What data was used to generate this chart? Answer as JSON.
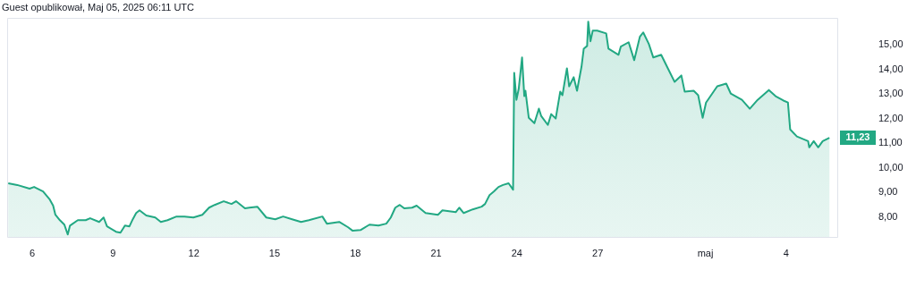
{
  "chart_data": {
    "type": "area",
    "title": "Guest opublikował, Maj 05, 2025 06:11 UTC",
    "x": [
      "2025-04-05T03:00",
      "2025-04-05T11:00",
      "2025-04-05T22:00",
      "2025-04-06T02:00",
      "2025-04-06T10:00",
      "2025-04-06T16:00",
      "2025-04-06T19:00",
      "2025-04-06T21:00",
      "2025-04-07T01:00",
      "2025-04-07T05:00",
      "2025-04-07T08:00",
      "2025-04-07T10:00",
      "2025-04-07T17:00",
      "2025-04-08T00:00",
      "2025-04-08T04:00",
      "2025-04-08T12:00",
      "2025-04-08T16:00",
      "2025-04-08T19:00",
      "2025-04-09T03:00",
      "2025-04-09T07:00",
      "2025-04-09T11:00",
      "2025-04-09T15:00",
      "2025-04-09T18:00",
      "2025-04-09T21:00",
      "2025-04-10T00:00",
      "2025-04-10T06:00",
      "2025-04-10T14:00",
      "2025-04-10T19:00",
      "2025-04-11T01:00",
      "2025-04-11T09:00",
      "2025-04-11T16:00",
      "2025-04-12T00:00",
      "2025-04-12T08:00",
      "2025-04-12T14:00",
      "2025-04-12T19:00",
      "2025-04-13T03:00",
      "2025-04-13T10:00",
      "2025-04-13T14:00",
      "2025-04-13T22:00",
      "2025-04-14T02:00",
      "2025-04-14T09:00",
      "2025-04-14T17:00",
      "2025-04-15T01:00",
      "2025-04-15T08:00",
      "2025-04-15T16:00",
      "2025-04-16T00:00",
      "2025-04-16T07:00",
      "2025-04-16T19:00",
      "2025-04-16T23:00",
      "2025-04-17T10:00",
      "2025-04-17T18:00",
      "2025-04-17T22:00",
      "2025-04-18T05:00",
      "2025-04-18T13:00",
      "2025-04-18T21:00",
      "2025-04-19T04:00",
      "2025-04-19T08:00",
      "2025-04-19T12:00",
      "2025-04-19T16:00",
      "2025-04-19T20:00",
      "2025-04-20T03:00",
      "2025-04-20T07:00",
      "2025-04-20T15:00",
      "2025-04-21T02:00",
      "2025-04-21T06:00",
      "2025-04-21T18:00",
      "2025-04-21T21:00",
      "2025-04-22T01:00",
      "2025-04-22T09:00",
      "2025-04-22T17:00",
      "2025-04-22T20:00",
      "2025-04-23T00:00",
      "2025-04-23T04:00",
      "2025-04-23T08:00",
      "2025-04-23T12:00",
      "2025-04-23T17:00",
      "2025-04-23T21:00",
      "2025-04-23T22:00",
      "2025-04-24T00:00",
      "2025-04-24T02:00",
      "2025-04-24T05:00",
      "2025-04-24T07:00",
      "2025-04-24T08:00",
      "2025-04-24T11:00",
      "2025-04-24T16:00",
      "2025-04-24T20:00",
      "2025-04-24T22:00",
      "2025-04-25T04:00",
      "2025-04-25T07:00",
      "2025-04-25T11:00",
      "2025-04-25T15:00",
      "2025-04-25T17:00",
      "2025-04-25T21:00",
      "2025-04-25T23:00",
      "2025-04-26T03:00",
      "2025-04-26T06:00",
      "2025-04-26T10:00",
      "2025-04-26T12:00",
      "2025-04-26T15:00",
      "2025-04-26T16:00",
      "2025-04-26T18:00",
      "2025-04-26T20:00",
      "2025-04-27T00:00",
      "2025-04-27T08:00",
      "2025-04-27T10:00",
      "2025-04-27T19:00",
      "2025-04-27T21:00",
      "2025-04-28T04:00",
      "2025-04-28T09:00",
      "2025-04-28T14:00",
      "2025-04-28T17:00",
      "2025-04-28T22:00",
      "2025-04-29T02:00",
      "2025-04-29T09:00",
      "2025-04-29T15:00",
      "2025-04-29T21:00",
      "2025-04-30T03:00",
      "2025-04-30T06:00",
      "2025-04-30T14:00",
      "2025-04-30T18:00",
      "2025-04-30T22:00",
      "2025-05-01T01:00",
      "2025-05-01T11:00",
      "2025-05-01T19:00",
      "2025-05-01T23:00",
      "2025-05-02T09:00",
      "2025-05-02T16:00",
      "2025-05-02T23:00",
      "2025-05-03T09:00",
      "2025-05-03T15:00",
      "2025-05-03T22:00",
      "2025-05-04T02:00",
      "2025-05-04T04:00",
      "2025-05-04T10:00",
      "2025-05-04T20:00",
      "2025-05-04T21:00",
      "2025-05-05T01:00",
      "2025-05-05T05:00",
      "2025-05-05T09:00",
      "2025-05-05T15:00"
    ],
    "series": [
      {
        "color": "#22a883",
        "values": [
          9.38,
          9.31,
          9.16,
          9.23,
          9.05,
          8.72,
          8.47,
          8.1,
          7.88,
          7.7,
          7.3,
          7.66,
          7.88,
          7.88,
          7.96,
          7.81,
          7.99,
          7.63,
          7.41,
          7.37,
          7.66,
          7.63,
          7.92,
          8.17,
          8.28,
          8.07,
          7.99,
          7.81,
          7.88,
          8.03,
          8.03,
          7.99,
          8.1,
          8.39,
          8.5,
          8.65,
          8.54,
          8.65,
          8.36,
          8.39,
          8.43,
          7.99,
          7.92,
          8.03,
          7.92,
          7.81,
          7.88,
          8.03,
          7.74,
          7.81,
          7.59,
          7.45,
          7.48,
          7.7,
          7.66,
          7.74,
          7.99,
          8.39,
          8.5,
          8.36,
          8.39,
          8.47,
          8.17,
          8.1,
          8.28,
          8.21,
          8.39,
          8.17,
          8.32,
          8.43,
          8.54,
          8.9,
          9.05,
          9.23,
          9.31,
          9.38,
          9.12,
          13.87,
          12.77,
          13.21,
          14.49,
          12.92,
          13.14,
          12.04,
          11.82,
          12.41,
          12.12,
          11.75,
          12.19,
          12.01,
          13.1,
          12.96,
          14.05,
          13.32,
          13.69,
          13.14,
          14.12,
          14.85,
          14.96,
          15.95,
          15.15,
          15.58,
          15.58,
          15.47,
          14.85,
          14.6,
          14.93,
          15.11,
          14.38,
          15.33,
          15.51,
          15.04,
          14.49,
          14.6,
          14.05,
          13.5,
          13.76,
          13.1,
          13.14,
          12.96,
          12.04,
          12.66,
          13.32,
          13.43,
          13.03,
          12.77,
          12.41,
          12.77,
          13.17,
          12.92,
          12.74,
          12.66,
          11.57,
          11.28,
          11.09,
          10.84,
          11.09,
          10.84,
          11.09,
          11.23
        ]
      }
    ],
    "xlim": [
      "2025-04-05T02:00",
      "2025-05-05T22:00"
    ],
    "xticks": [
      {
        "value": "2025-04-06",
        "label": "6"
      },
      {
        "value": "2025-04-09",
        "label": "9"
      },
      {
        "value": "2025-04-12",
        "label": "12"
      },
      {
        "value": "2025-04-15",
        "label": "15"
      },
      {
        "value": "2025-04-18",
        "label": "18"
      },
      {
        "value": "2025-04-21",
        "label": "21"
      },
      {
        "value": "2025-04-24",
        "label": "24"
      },
      {
        "value": "2025-04-27",
        "label": "27"
      },
      {
        "value": "2025-05-01",
        "label": "maj"
      },
      {
        "value": "2025-05-04",
        "label": "4"
      }
    ],
    "ylim": [
      7.2,
      16.1
    ],
    "yticks": [
      {
        "value": 8,
        "label": "8,00"
      },
      {
        "value": 9,
        "label": "9,00"
      },
      {
        "value": 10,
        "label": "10,00"
      },
      {
        "value": 11,
        "label": "11,00"
      },
      {
        "value": 12,
        "label": "12,00"
      },
      {
        "value": 13,
        "label": "13,00"
      },
      {
        "value": 14,
        "label": "14,00"
      },
      {
        "value": 15,
        "label": "15,00"
      }
    ],
    "annotations": [
      {
        "text": "11,23",
        "x": "2025-05-05T15:00",
        "y": 11.23
      }
    ],
    "grid": false
  }
}
